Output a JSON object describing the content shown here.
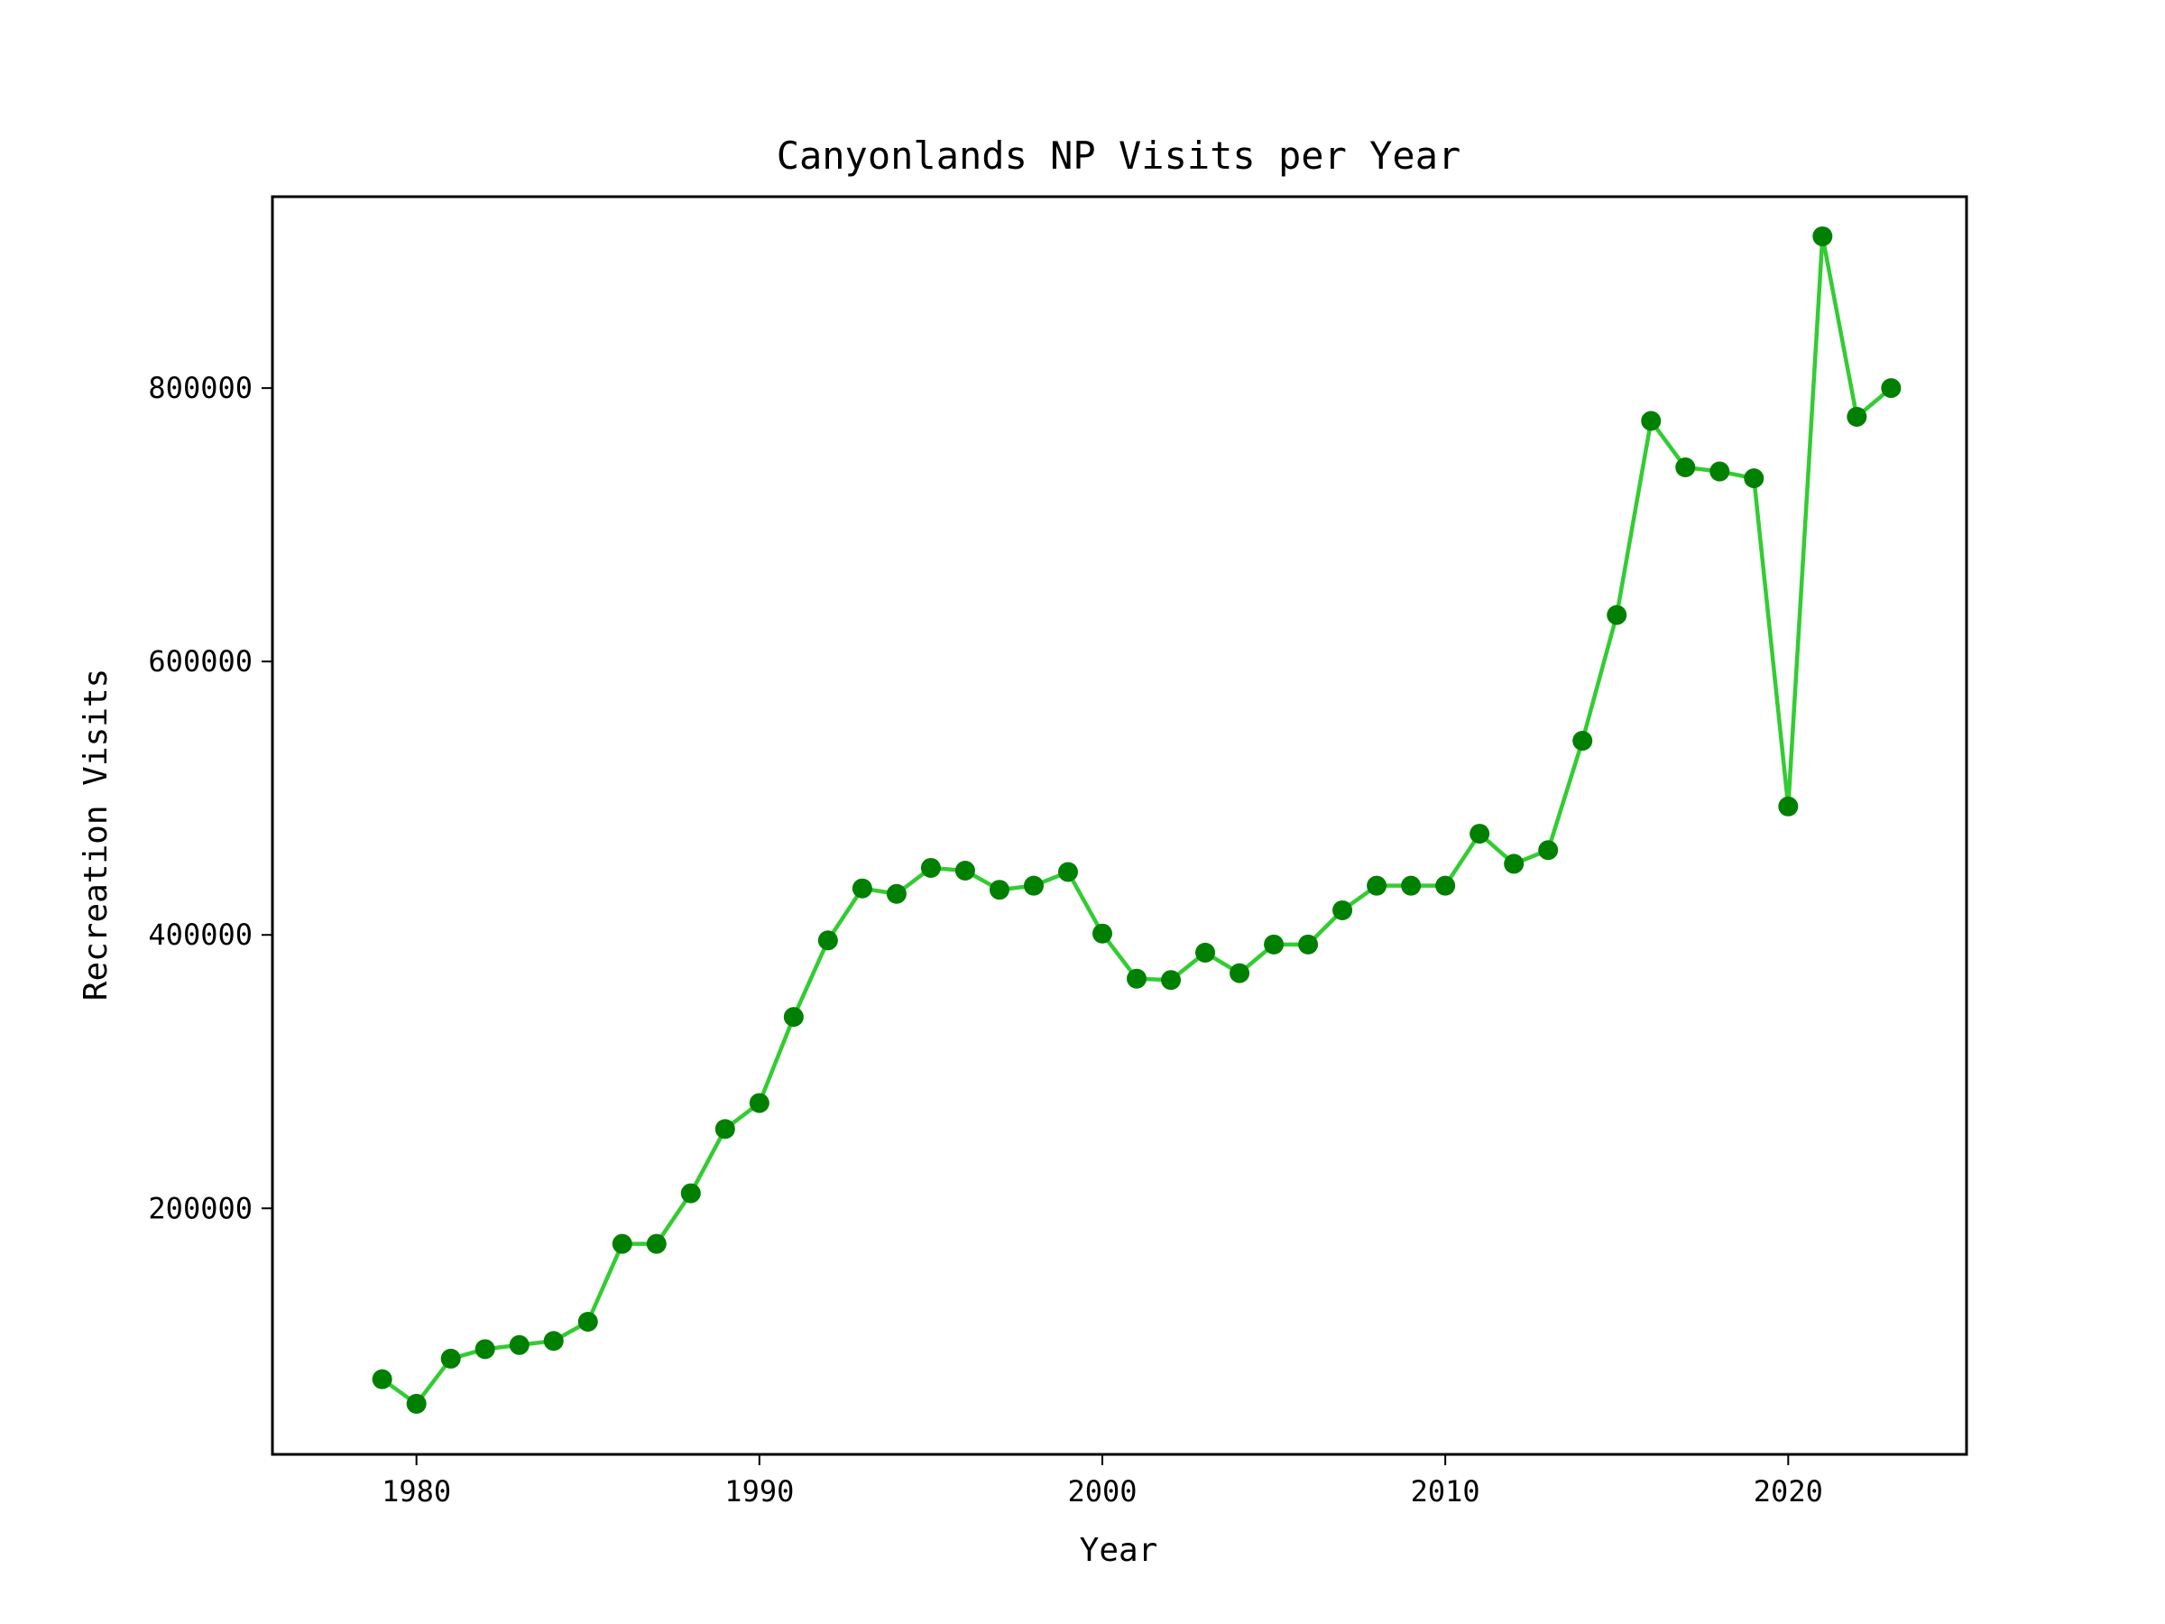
{
  "chart_data": {
    "type": "line",
    "title": "Canyonlands NP Visits per Year",
    "xlabel": "Year",
    "ylabel": "Recreation Visits",
    "xlim": [
      1975.8,
      2025.2
    ],
    "ylim": [
      20000,
      940000
    ],
    "x_ticks": [
      1980,
      1990,
      2000,
      2010,
      2020
    ],
    "y_ticks": [
      200000,
      400000,
      600000,
      800000
    ],
    "x_tick_labels": [
      "1980",
      "1990",
      "2000",
      "2010",
      "2020"
    ],
    "y_tick_labels": [
      "200000",
      "400000",
      "600000",
      "800000"
    ],
    "grid": false,
    "legend": "none",
    "series": [
      {
        "line_color": "#33cc33",
        "marker_color": "#008000",
        "x": [
          1979,
          1980,
          1981,
          1982,
          1983,
          1984,
          1985,
          1986,
          1987,
          1988,
          1989,
          1990,
          1991,
          1992,
          1993,
          1994,
          1995,
          1996,
          1997,
          1998,
          1999,
          2000,
          2001,
          2002,
          2003,
          2004,
          2005,
          2006,
          2007,
          2008,
          2009,
          2010,
          2011,
          2012,
          2013,
          2014,
          2015,
          2016,
          2017,
          2018,
          2019,
          2020,
          2021,
          2022,
          2023
        ],
        "y": [
          75000,
          57000,
          90000,
          97000,
          100000,
          103000,
          117000,
          174000,
          174000,
          211000,
          258000,
          277000,
          340000,
          396000,
          434000,
          430000,
          449000,
          447000,
          433000,
          436000,
          446000,
          401000,
          368000,
          367000,
          387000,
          372000,
          393000,
          393000,
          418000,
          436000,
          436000,
          436000,
          474000,
          452000,
          462000,
          542000,
          634000,
          776000,
          742000,
          739000,
          734000,
          494000,
          911000,
          779000,
          800000
        ]
      }
    ]
  }
}
